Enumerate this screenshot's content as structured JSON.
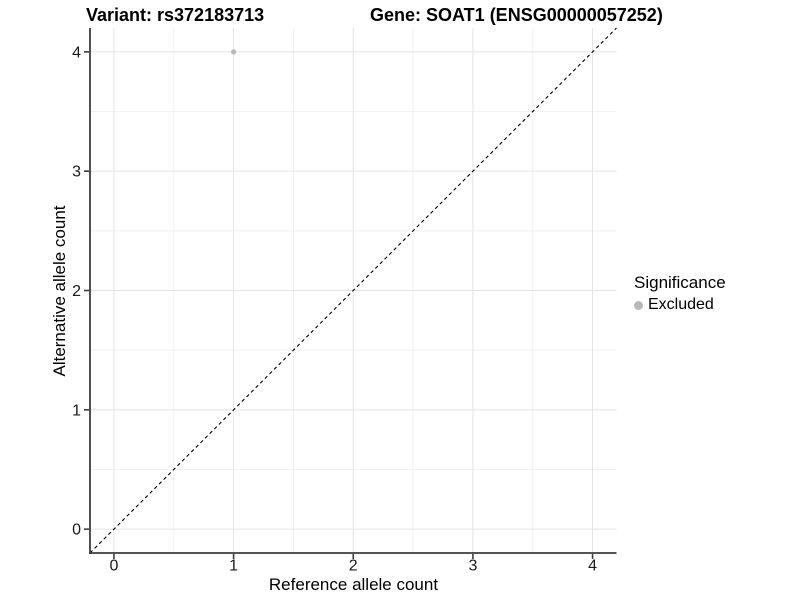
{
  "chart_data": {
    "type": "scatter",
    "titles": {
      "left": "Variant: rs372183713",
      "right": "Gene: SOAT1 (ENSG00000057252)"
    },
    "xlabel": "Reference allele count",
    "ylabel": "Alternative allele count",
    "xlim": [
      -0.2,
      4.2
    ],
    "ylim": [
      -0.2,
      4.2
    ],
    "x_ticks": [
      0,
      1,
      2,
      3,
      4
    ],
    "y_ticks": [
      0,
      1,
      2,
      3,
      4
    ],
    "grid": {
      "major_color": "#e4e4e4",
      "minor_color": "#f1f1f1",
      "background": "#ffffff",
      "minor_at_midpoints": true
    },
    "axis": {
      "color": "#3c3c3c",
      "tick_label_color": "#1a1a1a"
    },
    "reference_line": {
      "style": "dashed",
      "color": "#000000",
      "from": [
        -0.2,
        -0.2
      ],
      "to": [
        4.2,
        4.2
      ]
    },
    "series": [
      {
        "name": "Excluded",
        "color": "#b8b8b8",
        "points": [
          {
            "x": 1,
            "y": 4
          }
        ]
      }
    ],
    "legend": {
      "title": "Significance",
      "position": "right",
      "items": [
        {
          "label": "Excluded",
          "color": "#b8b8b8"
        }
      ]
    }
  }
}
